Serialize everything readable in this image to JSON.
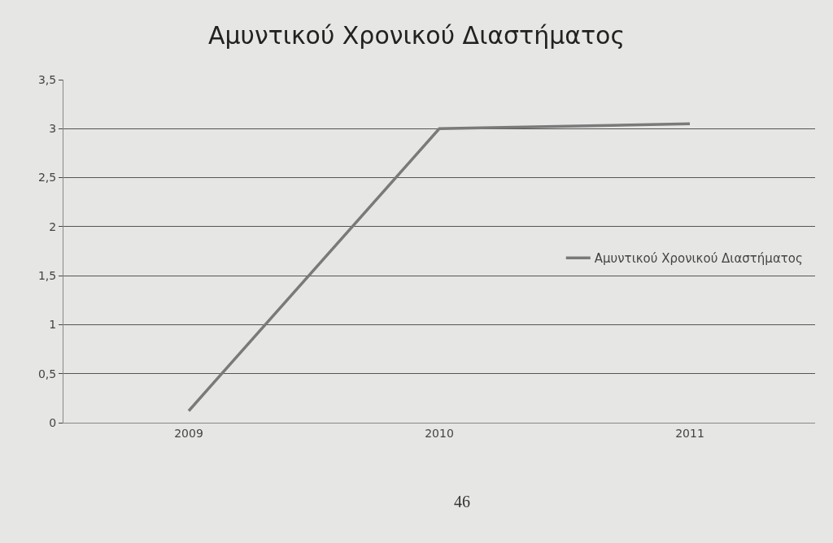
{
  "chart_data": {
    "type": "line",
    "title": "Αμυντικού Χρονικού Διαστήματος",
    "categories": [
      "2009",
      "2010",
      "2011"
    ],
    "series": [
      {
        "name": "Αμυντικού Χρονικού Διαστήματος",
        "color": "#7a7a7a",
        "values": [
          0.12,
          3,
          3.05
        ]
      }
    ],
    "ylim": [
      0,
      3.5
    ],
    "yticks": [
      0,
      {
        "value": 0.5,
        "label": "0,5"
      },
      1,
      {
        "value": 1.5,
        "label": "1,5"
      },
      2,
      {
        "value": 2.5,
        "label": "2,5"
      },
      3,
      {
        "value": 3.5,
        "label": "3,5"
      }
    ],
    "grid": "y",
    "legend": "right",
    "marker": "none",
    "line_style": "solid",
    "annotations": [
      "46"
    ]
  }
}
